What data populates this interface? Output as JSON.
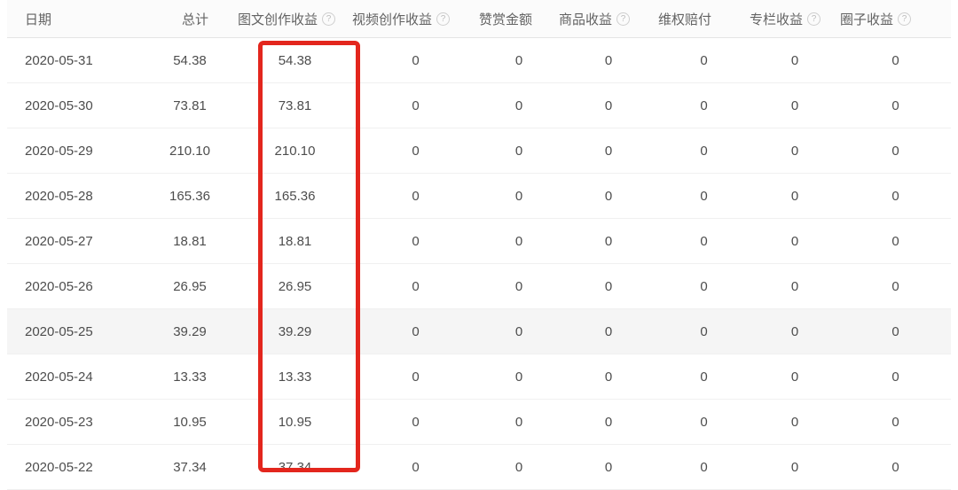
{
  "icons": {
    "help": "?"
  },
  "colors": {
    "annotation_red": "#e3261d",
    "header_text": "#636363",
    "body_text": "#4d4d4d",
    "row_hover_bg": "#f5f5f5",
    "row_border": "#f0f0f0"
  },
  "table": {
    "columns": [
      {
        "label": "日期",
        "has_help": false
      },
      {
        "label": "总计",
        "has_help": false
      },
      {
        "label": "图文创作收益",
        "has_help": true
      },
      {
        "label": "视频创作收益",
        "has_help": true
      },
      {
        "label": "赞赏金额",
        "has_help": false
      },
      {
        "label": "商品收益",
        "has_help": true
      },
      {
        "label": "维权赔付",
        "has_help": false
      },
      {
        "label": "专栏收益",
        "has_help": true
      },
      {
        "label": "圈子收益",
        "has_help": true
      }
    ],
    "highlighted_row_index": 6,
    "rows": [
      {
        "cells": [
          "2020-05-31",
          "54.38",
          "54.38",
          "0",
          "0",
          "0",
          "0",
          "0",
          "0"
        ]
      },
      {
        "cells": [
          "2020-05-30",
          "73.81",
          "73.81",
          "0",
          "0",
          "0",
          "0",
          "0",
          "0"
        ]
      },
      {
        "cells": [
          "2020-05-29",
          "210.10",
          "210.10",
          "0",
          "0",
          "0",
          "0",
          "0",
          "0"
        ]
      },
      {
        "cells": [
          "2020-05-28",
          "165.36",
          "165.36",
          "0",
          "0",
          "0",
          "0",
          "0",
          "0"
        ]
      },
      {
        "cells": [
          "2020-05-27",
          "18.81",
          "18.81",
          "0",
          "0",
          "0",
          "0",
          "0",
          "0"
        ]
      },
      {
        "cells": [
          "2020-05-26",
          "26.95",
          "26.95",
          "0",
          "0",
          "0",
          "0",
          "0",
          "0"
        ]
      },
      {
        "cells": [
          "2020-05-25",
          "39.29",
          "39.29",
          "0",
          "0",
          "0",
          "0",
          "0",
          "0"
        ]
      },
      {
        "cells": [
          "2020-05-24",
          "13.33",
          "13.33",
          "0",
          "0",
          "0",
          "0",
          "0",
          "0"
        ]
      },
      {
        "cells": [
          "2020-05-23",
          "10.95",
          "10.95",
          "0",
          "0",
          "0",
          "0",
          "0",
          "0"
        ]
      },
      {
        "cells": [
          "2020-05-22",
          "37.34",
          "37.34",
          "0",
          "0",
          "0",
          "0",
          "0",
          "0"
        ]
      }
    ]
  },
  "annotation": {
    "red_box_column": "图文创作收益"
  }
}
